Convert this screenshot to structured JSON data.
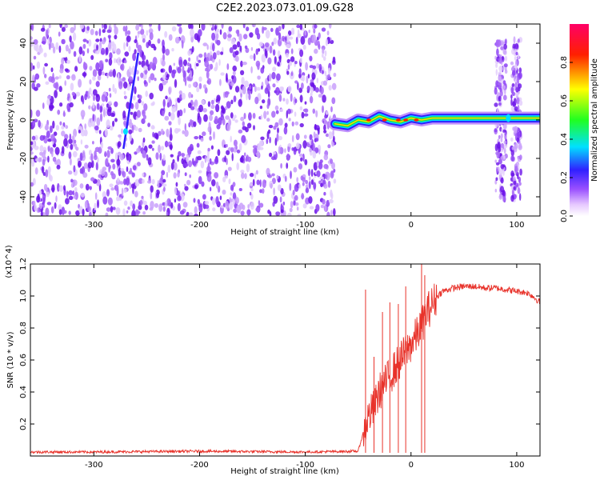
{
  "title": "C2E2.2023.073.01.09.G28",
  "colors": {
    "line": "#e8322a",
    "spectrogram_noise": "#7a1ff0",
    "colorbar": [
      "#ffffff",
      "#e6c8ff",
      "#9a50ff",
      "#3020ff",
      "#00e0ff",
      "#20ff20",
      "#ffff00",
      "#ff2000",
      "#ff0066"
    ]
  },
  "chart_data": [
    {
      "type": "heatmap",
      "xlabel": "Height of straight line (km)",
      "ylabel": "Frequency (Hz)",
      "xlim": [
        -360,
        122
      ],
      "ylim": [
        -50,
        50
      ],
      "x_ticks": [
        "-300",
        "-200",
        "-100",
        "0",
        "100"
      ],
      "x_tick_values": [
        -300,
        -200,
        -100,
        0,
        100
      ],
      "y_ticks": [
        "-40",
        "-20",
        "0",
        "20",
        "40"
      ],
      "y_tick_values": [
        -40,
        -20,
        0,
        20,
        40
      ],
      "colorbar": {
        "label": "Normalized spectral amplitude",
        "ticks": [
          "0.0",
          "0.2",
          "0.4",
          "0.6",
          "0.8"
        ],
        "tick_values": [
          0.0,
          0.2,
          0.4,
          0.6,
          0.8
        ],
        "range": [
          0,
          1
        ]
      },
      "noise_region_x": [
        -360,
        -72
      ],
      "signal_track": {
        "x": [
          -72,
          -60,
          -50,
          -40,
          -30,
          -20,
          -10,
          0,
          10,
          20,
          40,
          60,
          78,
          100,
          122
        ],
        "y": [
          -2,
          -3,
          0,
          -1,
          2,
          0,
          -1,
          1,
          0,
          1,
          1,
          1,
          1,
          1,
          1
        ]
      },
      "vertical_bands_x": [
        [
          80,
          90
        ],
        [
          95,
          104
        ]
      ]
    },
    {
      "type": "line",
      "xlabel": "Height of straight line (km)",
      "ylabel": "SNR (10 * v/v)",
      "y_multiplier": "(x10^4)",
      "xlim": [
        -360,
        122
      ],
      "ylim": [
        0,
        1.2
      ],
      "x_ticks": [
        "-300",
        "-200",
        "-100",
        "0",
        "100"
      ],
      "x_tick_values": [
        -300,
        -200,
        -100,
        0,
        100
      ],
      "y_ticks": [
        "0.2",
        "0.4",
        "0.6",
        "0.8",
        "1.0",
        "1.2"
      ],
      "y_tick_values": [
        0.2,
        0.4,
        0.6,
        0.8,
        1.0,
        1.2
      ],
      "x": [
        -360,
        -300,
        -200,
        -100,
        -50,
        -45,
        -40,
        -35,
        -30,
        -25,
        -20,
        -15,
        -10,
        -5,
        0,
        5,
        10,
        15,
        20,
        25,
        30,
        40,
        50,
        60,
        70,
        80,
        90,
        100,
        110,
        115,
        122
      ],
      "y": [
        0.025,
        0.025,
        0.03,
        0.025,
        0.03,
        0.15,
        0.25,
        0.3,
        0.4,
        0.45,
        0.5,
        0.55,
        0.6,
        0.65,
        0.7,
        0.75,
        0.82,
        0.9,
        0.95,
        1.0,
        1.03,
        1.05,
        1.06,
        1.06,
        1.05,
        1.05,
        1.04,
        1.03,
        1.02,
        1.0,
        0.96
      ],
      "spikes": [
        {
          "x": -43,
          "y": 1.04
        },
        {
          "x": -35,
          "y": 0.62
        },
        {
          "x": -27,
          "y": 0.9
        },
        {
          "x": -20,
          "y": 0.96
        },
        {
          "x": -12,
          "y": 0.95
        },
        {
          "x": -5,
          "y": 1.06
        },
        {
          "x": 10,
          "y": 1.2
        },
        {
          "x": 13,
          "y": 1.13
        }
      ]
    }
  ]
}
